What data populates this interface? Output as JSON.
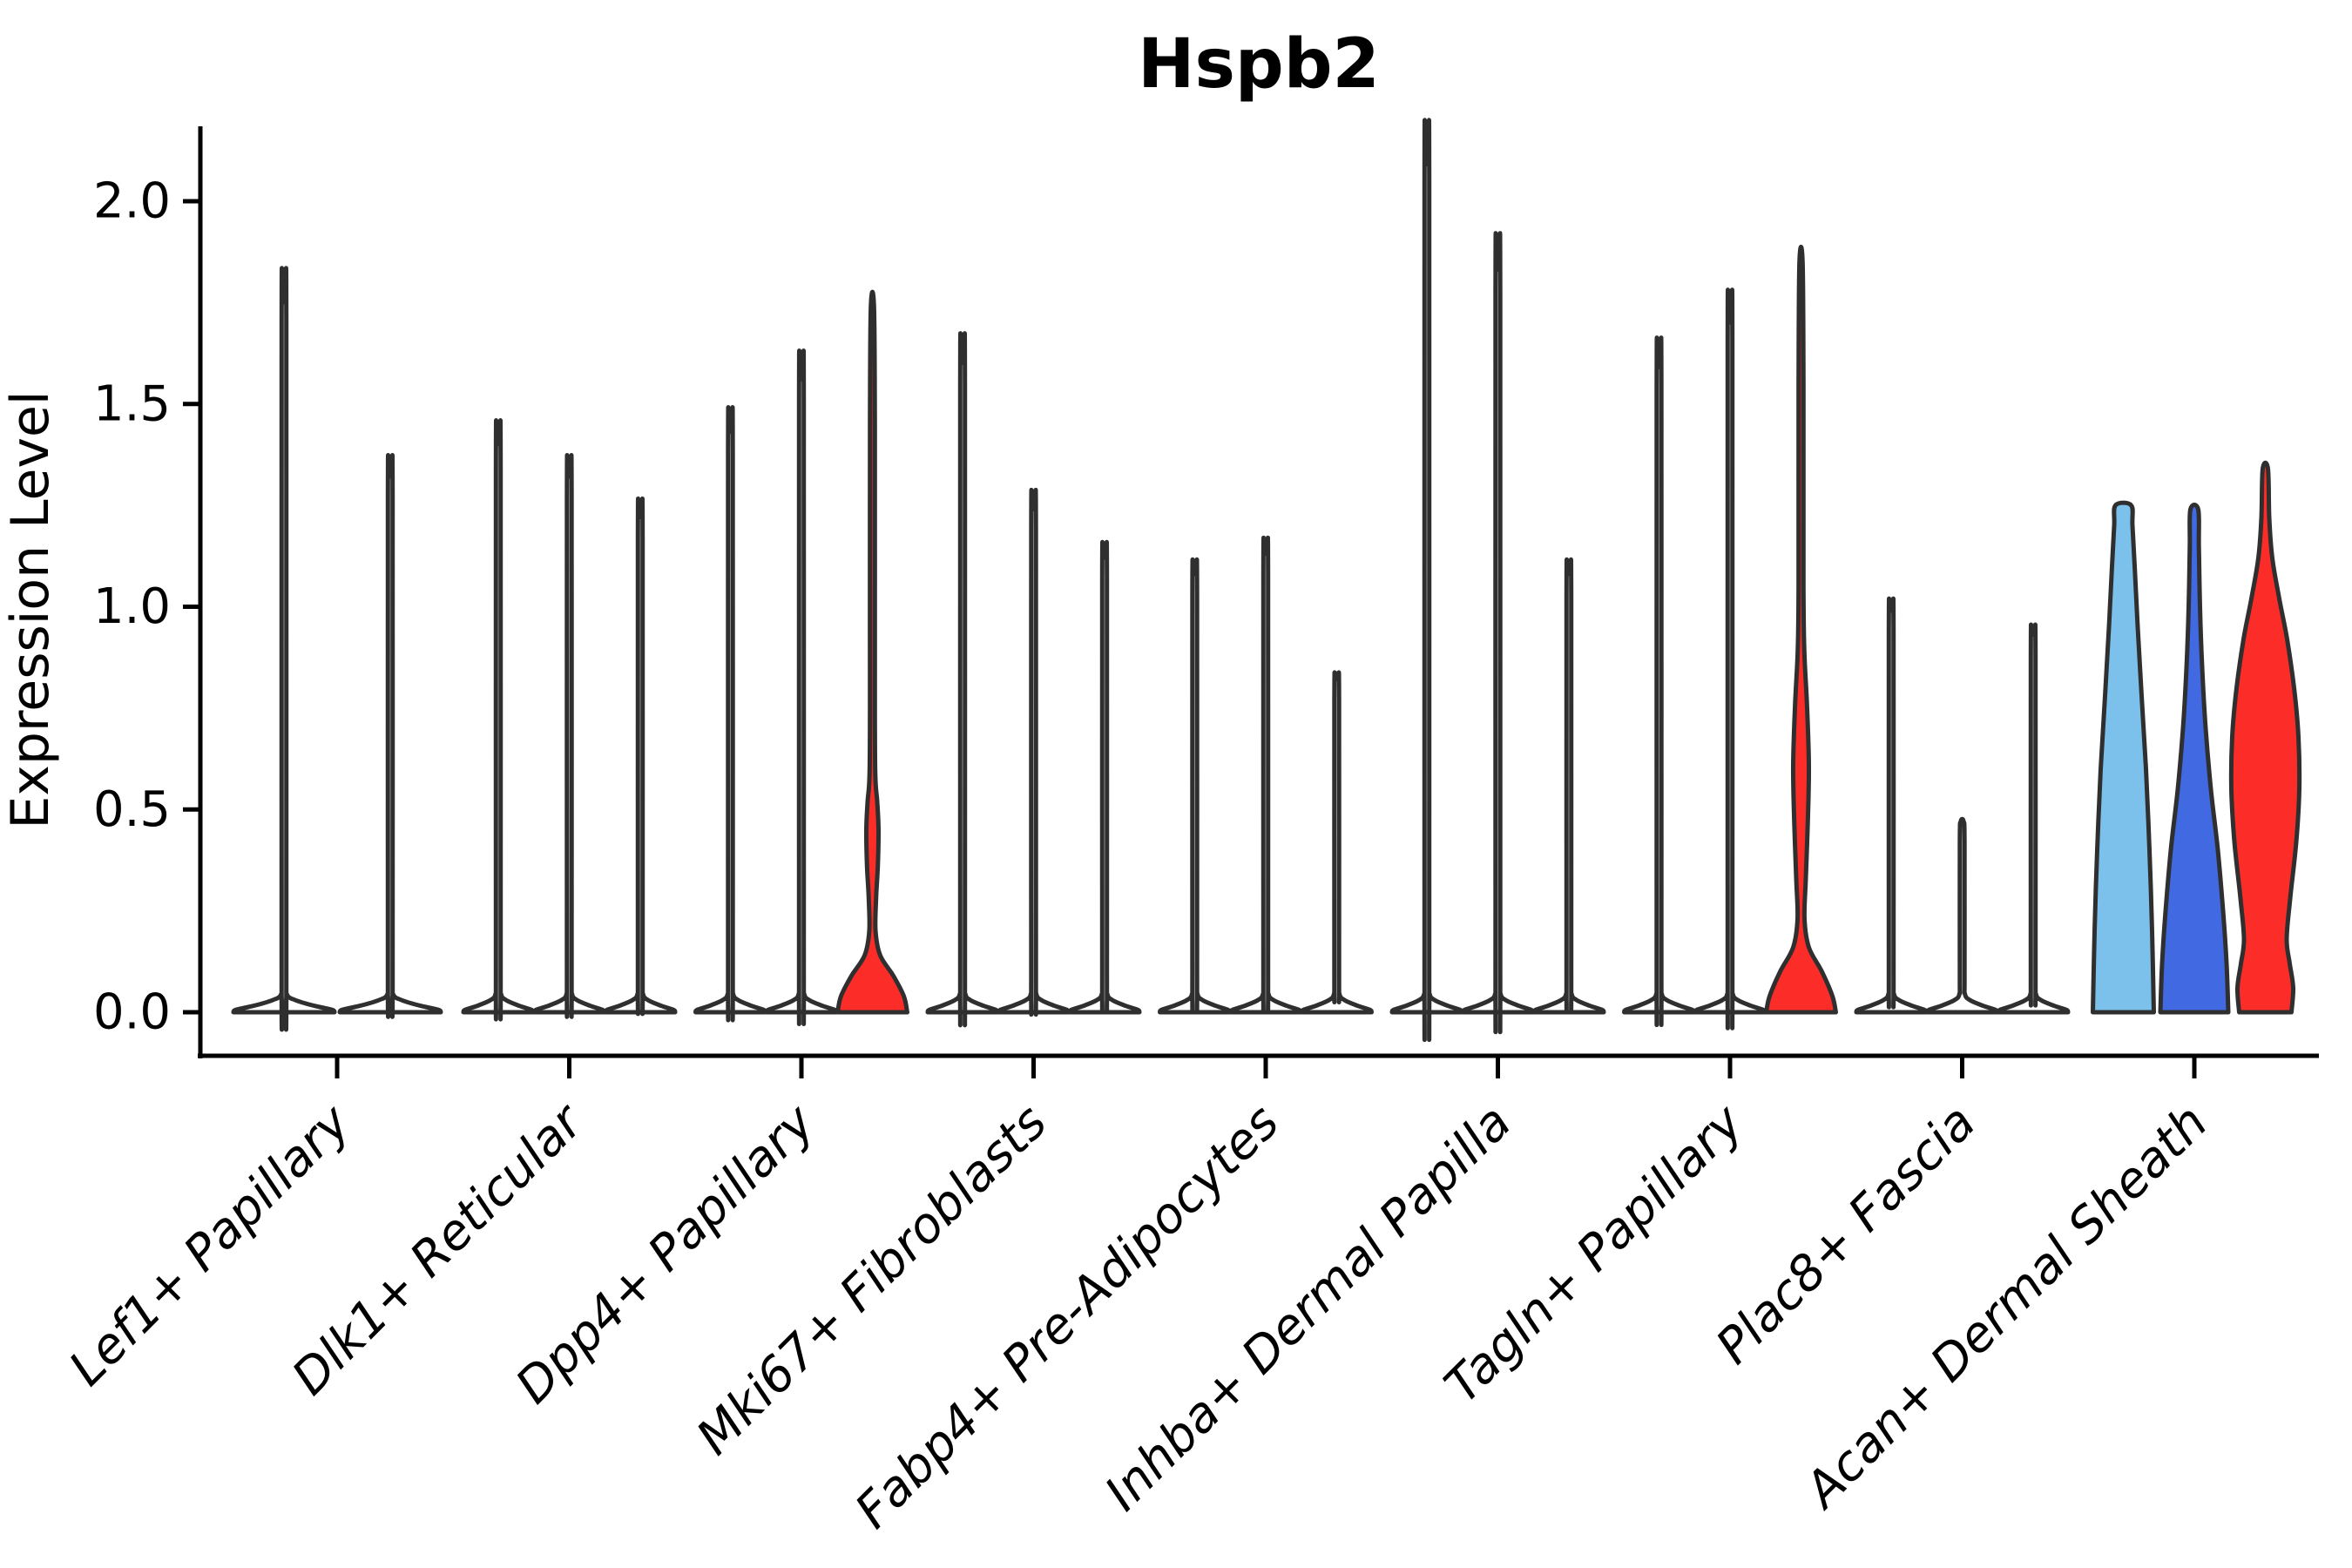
{
  "colors": {
    "outline": "#2f2f2f",
    "axis": "#000000",
    "white": "#ffffff",
    "red": "#fc2d28",
    "skyblue": "#7cc0ec",
    "royalblue": "#4169e1"
  },
  "chart_data": {
    "type": "violin",
    "title": "Hspb2",
    "ylabel": "Expression Level",
    "xlabel": "",
    "ylim": [
      0,
      2.2
    ],
    "grid": false,
    "legend": "none",
    "yticks": [
      0.0,
      0.5,
      1.0,
      1.5,
      2.0
    ],
    "ytick_labels": [
      "0.0",
      "0.5",
      "1.0",
      "1.5",
      "2.0"
    ],
    "categories": [
      "Lef1+ Papillary",
      "Dlk1+ Reticular",
      "Dpp4+ Papillary",
      "Mki67+ Fibroblasts",
      "Fabp4+ Pre-Adipocytes",
      "Inhba+ Dermal Papilla",
      "Tagln+ Papillary",
      "Plac8+ Fascia",
      "Acan+ Dermal Sheath"
    ],
    "groups": [
      {
        "category": "Lef1+ Papillary",
        "violins": [
          {
            "max": 1.75,
            "fill": "white",
            "shape": "spike",
            "base_halfwidth": 58
          },
          {
            "max": 1.32,
            "fill": "white",
            "shape": "spike",
            "base_halfwidth": 58
          }
        ]
      },
      {
        "category": "Dlk1+ Reticular",
        "violins": [
          {
            "max": 1.4,
            "fill": "white",
            "shape": "spike",
            "base_halfwidth": 40
          },
          {
            "max": 1.32,
            "fill": "white",
            "shape": "spike",
            "base_halfwidth": 40
          },
          {
            "max": 1.22,
            "fill": "white",
            "shape": "spike",
            "base_halfwidth": 40
          }
        ]
      },
      {
        "category": "Dpp4+ Papillary",
        "violins": [
          {
            "max": 1.43,
            "fill": "white",
            "shape": "spike",
            "base_halfwidth": 40
          },
          {
            "max": 1.56,
            "fill": "white",
            "shape": "spike",
            "base_halfwidth": 40
          },
          {
            "max": 1.74,
            "fill": "red",
            "shape": "custom",
            "profile": [
              [
                0,
                40
              ],
              [
                0.04,
                36
              ],
              [
                0.09,
                24
              ],
              [
                0.14,
                9
              ],
              [
                0.2,
                3.6
              ],
              [
                0.28,
                4.2
              ],
              [
                0.36,
                6.2
              ],
              [
                0.45,
                7.0
              ],
              [
                0.52,
                5.5
              ],
              [
                0.58,
                3.4
              ],
              [
                0.75,
                2.8
              ],
              [
                1.45,
                2.8
              ],
              [
                1.74,
                1.8
              ]
            ]
          }
        ]
      },
      {
        "category": "Mki67+ Fibroblasts",
        "violins": [
          {
            "max": 1.6,
            "fill": "white",
            "shape": "spike",
            "base_halfwidth": 40
          },
          {
            "max": 1.24,
            "fill": "white",
            "shape": "spike",
            "base_halfwidth": 40
          },
          {
            "max": 1.12,
            "fill": "white",
            "shape": "spike",
            "base_halfwidth": 40
          }
        ]
      },
      {
        "category": "Fabp4+ Pre-Adipocytes",
        "violins": [
          {
            "max": 1.08,
            "fill": "white",
            "shape": "spike",
            "base_halfwidth": 40
          },
          {
            "max": 1.13,
            "fill": "white",
            "shape": "spike",
            "base_halfwidth": 40
          },
          {
            "max": 0.82,
            "fill": "white",
            "shape": "spike",
            "base_halfwidth": 40
          }
        ]
      },
      {
        "category": "Inhba+ Dermal Papilla",
        "violins": [
          {
            "max": 2.09,
            "fill": "white",
            "shape": "spike",
            "base_halfwidth": 40
          },
          {
            "max": 1.83,
            "fill": "white",
            "shape": "spike",
            "base_halfwidth": 40
          },
          {
            "max": 1.08,
            "fill": "white",
            "shape": "spike",
            "base_halfwidth": 40
          }
        ]
      },
      {
        "category": "Tagln+ Papillary",
        "violins": [
          {
            "max": 1.59,
            "fill": "white",
            "shape": "spike",
            "base_halfwidth": 40
          },
          {
            "max": 1.7,
            "fill": "white",
            "shape": "spike",
            "base_halfwidth": 40
          },
          {
            "max": 1.85,
            "fill": "red",
            "shape": "custom",
            "profile": [
              [
                0,
                40
              ],
              [
                0.04,
                36
              ],
              [
                0.1,
                24
              ],
              [
                0.16,
                9
              ],
              [
                0.23,
                4
              ],
              [
                0.33,
                5.5
              ],
              [
                0.47,
                7.8
              ],
              [
                0.61,
                9
              ],
              [
                0.76,
                6.8
              ],
              [
                0.89,
                3.8
              ],
              [
                1.05,
                2.8
              ],
              [
                1.55,
                2.8
              ],
              [
                1.85,
                1.8
              ]
            ]
          }
        ]
      },
      {
        "category": "Plac8+ Fascia",
        "violins": [
          {
            "max": 0.99,
            "fill": "white",
            "shape": "spike",
            "base_halfwidth": 40
          },
          {
            "max": 0.47,
            "fill": "white",
            "shape": "spike",
            "base_halfwidth": 40
          },
          {
            "max": 0.93,
            "fill": "white",
            "shape": "spike",
            "base_halfwidth": 40
          }
        ]
      },
      {
        "category": "Acan+ Dermal Sheath",
        "violins": [
          {
            "max": 1.25,
            "fill": "skyblue",
            "shape": "custom",
            "profile": [
              [
                0,
                35
              ],
              [
                0.2,
                33
              ],
              [
                0.4,
                30
              ],
              [
                0.6,
                26
              ],
              [
                0.78,
                21
              ],
              [
                0.95,
                16.5
              ],
              [
                1.1,
                13
              ],
              [
                1.2,
                10.5
              ],
              [
                1.25,
                9
              ]
            ]
          },
          {
            "max": 1.24,
            "fill": "royalblue",
            "shape": "custom",
            "profile": [
              [
                0,
                39
              ],
              [
                0.12,
                37
              ],
              [
                0.25,
                33
              ],
              [
                0.4,
                27
              ],
              [
                0.55,
                19
              ],
              [
                0.7,
                13
              ],
              [
                0.85,
                9
              ],
              [
                1.0,
                6.5
              ],
              [
                1.15,
                5.2
              ],
              [
                1.24,
                4.5
              ]
            ]
          },
          {
            "max": 1.34,
            "fill": "red",
            "shape": "custom",
            "profile": [
              [
                0,
                30
              ],
              [
                0.06,
                32
              ],
              [
                0.12,
                28
              ],
              [
                0.18,
                24.5
              ],
              [
                0.28,
                28.5
              ],
              [
                0.42,
                35.5
              ],
              [
                0.55,
                39
              ],
              [
                0.68,
                38
              ],
              [
                0.8,
                33
              ],
              [
                0.92,
                25
              ],
              [
                1.02,
                16
              ],
              [
                1.12,
                8
              ],
              [
                1.22,
                4.5
              ],
              [
                1.34,
                3
              ]
            ]
          }
        ]
      }
    ]
  }
}
